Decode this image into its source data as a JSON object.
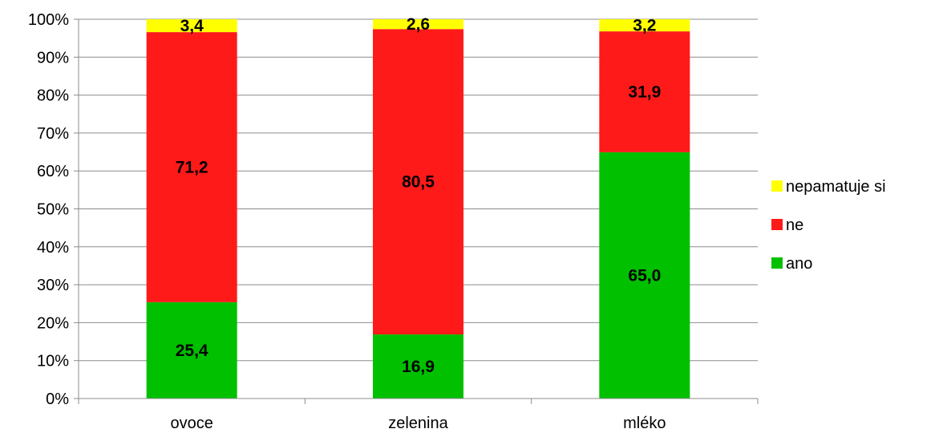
{
  "chart_data": {
    "type": "bar",
    "stacked": true,
    "percent_stacked": true,
    "categories": [
      "ovoce",
      "zelenina",
      "mléko"
    ],
    "series": [
      {
        "name": "ano",
        "values": [
          25.4,
          16.9,
          65.0
        ],
        "labels": [
          "25,4",
          "16,9",
          "65,0"
        ],
        "color": "#00c000"
      },
      {
        "name": "ne",
        "values": [
          71.2,
          80.5,
          31.9
        ],
        "labels": [
          "71,2",
          "80,5",
          "31,9"
        ],
        "color": "#ff1a1a"
      },
      {
        "name": "nepamatuje si",
        "values": [
          3.4,
          2.6,
          3.2
        ],
        "labels": [
          "3,4",
          "2,6",
          "3,2"
        ],
        "color": "#ffff00"
      }
    ],
    "yticks": [
      "0%",
      "10%",
      "20%",
      "30%",
      "40%",
      "50%",
      "60%",
      "70%",
      "80%",
      "90%",
      "100%"
    ],
    "ylim": [
      0,
      100
    ],
    "grid": true,
    "legend_position": "right",
    "legend_order": [
      "nepamatuje si",
      "ne",
      "ano"
    ],
    "title": "",
    "xlabel": "",
    "ylabel": ""
  }
}
